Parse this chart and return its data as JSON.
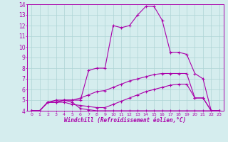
{
  "xlabel": "Windchill (Refroidissement éolien,°C)",
  "x": [
    0,
    1,
    2,
    3,
    4,
    5,
    6,
    7,
    8,
    9,
    10,
    11,
    12,
    13,
    14,
    15,
    16,
    17,
    18,
    19,
    20,
    21,
    22,
    23
  ],
  "line1": [
    4.0,
    4.0,
    4.8,
    4.8,
    5.0,
    4.8,
    4.2,
    4.1,
    4.0,
    4.0,
    4.0,
    4.0,
    4.0,
    4.0,
    4.0,
    4.0,
    4.0,
    4.0,
    4.0,
    4.0,
    4.0,
    4.0,
    4.0,
    4.0
  ],
  "line2": [
    4.0,
    4.0,
    4.8,
    4.8,
    4.8,
    4.6,
    4.5,
    4.4,
    4.3,
    4.3,
    4.6,
    4.9,
    5.2,
    5.5,
    5.8,
    6.0,
    6.2,
    6.4,
    6.5,
    6.5,
    5.2,
    5.2,
    4.0,
    4.0
  ],
  "line3": [
    4.0,
    4.0,
    4.8,
    5.0,
    5.0,
    5.0,
    5.2,
    5.5,
    5.8,
    5.9,
    6.2,
    6.5,
    6.8,
    7.0,
    7.2,
    7.4,
    7.5,
    7.5,
    7.5,
    7.5,
    5.2,
    5.2,
    4.0,
    4.0
  ],
  "line4": [
    4.0,
    4.0,
    4.8,
    4.8,
    5.0,
    5.0,
    5.0,
    7.8,
    8.0,
    8.0,
    12.0,
    11.8,
    12.0,
    13.0,
    13.8,
    13.8,
    12.5,
    9.5,
    9.5,
    9.3,
    7.5,
    7.0,
    4.0,
    4.0
  ],
  "ylim": [
    4,
    14
  ],
  "xlim": [
    -0.5,
    23.5
  ],
  "yticks": [
    4,
    5,
    6,
    7,
    8,
    9,
    10,
    11,
    12,
    13,
    14
  ],
  "xticks": [
    0,
    1,
    2,
    3,
    4,
    5,
    6,
    7,
    8,
    9,
    10,
    11,
    12,
    13,
    14,
    15,
    16,
    17,
    18,
    19,
    20,
    21,
    22,
    23
  ],
  "line_color": "#aa00aa",
  "bg_color": "#d5edee",
  "grid_color": "#aed4d5",
  "spine_color": "#aa00aa"
}
